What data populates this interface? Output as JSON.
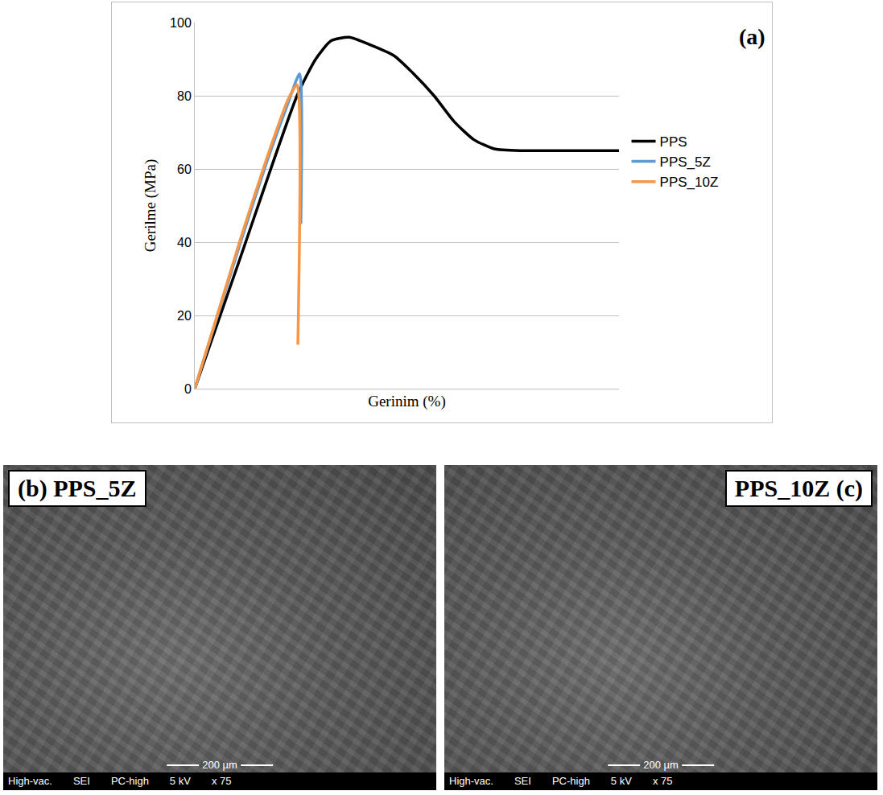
{
  "chart_data": {
    "type": "line",
    "annotation": "(a)",
    "x_label": "Gerinim (%)",
    "y_label": "Gerilme (MPa)",
    "xlim": [
      0,
      100
    ],
    "ylim": [
      0,
      100
    ],
    "yticks": [
      0,
      20,
      40,
      60,
      80,
      100
    ],
    "grid": true,
    "tick_labels": "y",
    "legend": "right",
    "series": [
      {
        "name": "PPS",
        "color": "#000000",
        "x": [
          0,
          10.8,
          24.1,
          28.5,
          32.1,
          36.4,
          41.2,
          46.9,
          51.6,
          56.4,
          61.1,
          65.8,
          70.6,
          77.2,
          86.7,
          100
        ],
        "values": [
          0,
          36,
          80,
          90,
          95,
          96,
          94,
          91,
          86,
          80,
          73,
          68,
          65.5,
          65,
          65,
          65
        ]
      },
      {
        "name": "PPS_5Z",
        "color": "#5b9bd5",
        "x": [
          0,
          10.8,
          17,
          22,
          24.7,
          25.0
        ],
        "values": [
          0,
          40,
          62,
          78,
          86,
          45
        ]
      },
      {
        "name": "PPS_10Z",
        "color": "#f79646",
        "x": [
          0,
          10.8,
          17,
          22,
          24.1,
          24.3
        ],
        "values": [
          0,
          41,
          63,
          79,
          83,
          12
        ]
      }
    ]
  },
  "images": [
    {
      "title": "(b) PPS_5Z",
      "scale_bar": "200 µm",
      "info": [
        "High-vac.",
        "SEI",
        "PC-high",
        "5 kV",
        "x 75"
      ]
    },
    {
      "title": "PPS_10Z (c)",
      "scale_bar": "200 µm",
      "info": [
        "High-vac.",
        "SEI",
        "PC-high",
        "5 kV",
        "x 75"
      ]
    }
  ]
}
